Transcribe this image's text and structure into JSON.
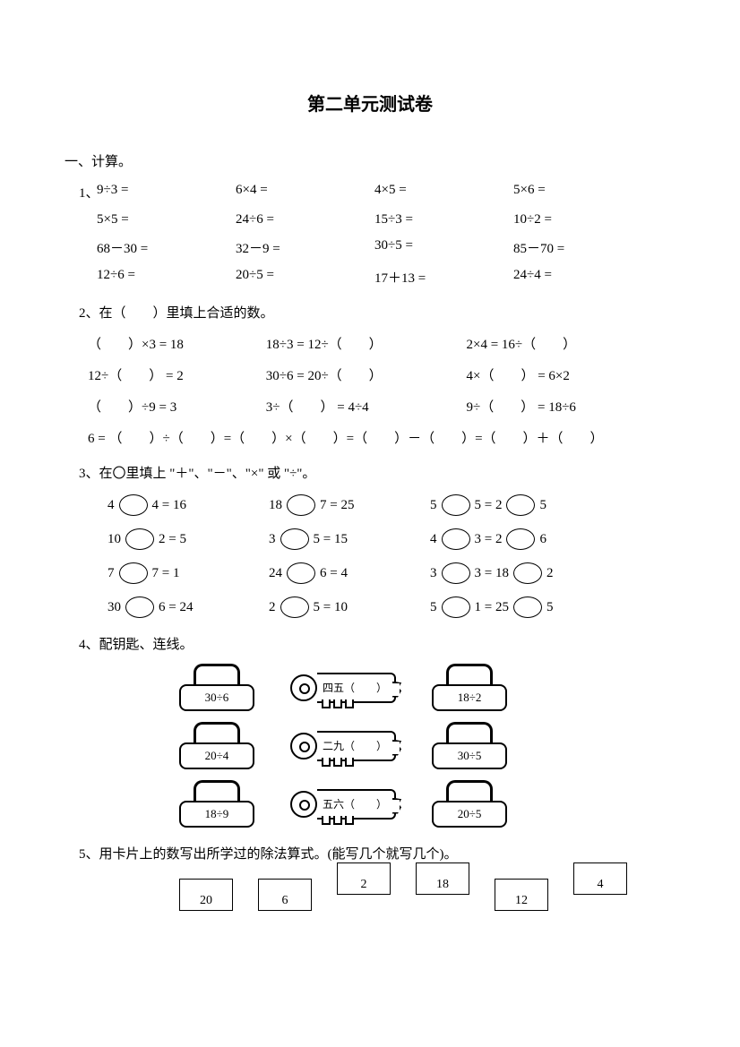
{
  "title": "第二单元测试卷",
  "section1_heading": "一、计算。",
  "q1_label": "1、",
  "q1_rows": [
    [
      "9÷3 =",
      "6×4 =",
      "4×5 =",
      "5×6 ="
    ],
    [
      "5×5 =",
      "24÷6 =",
      "15÷3 =",
      "10÷2 ="
    ],
    [
      "68－30 =",
      "32－9 =",
      "30÷5 =",
      "85－70 ="
    ],
    [
      "12÷6 =",
      "20÷5 =",
      "17＋13 =",
      "24÷4 ="
    ]
  ],
  "q2_heading": "2、在（　　）里填上合适的数。",
  "q2_lines": [
    [
      "（　　）×3 = 18",
      "18÷3 = 12÷（　　）",
      "2×4 = 16÷（　　）"
    ],
    [
      "12÷（　　） = 2",
      "30÷6 = 20÷（　　）",
      "4×（　　） = 6×2"
    ],
    [
      "（　　）÷9 = 3",
      "3÷（　　） = 4÷4",
      "9÷（　　） = 18÷6"
    ]
  ],
  "q2_last": "6 = （　　）÷（　　）=（　　）×（　　）=（　　）－（　　）=（　　）＋（　　）",
  "q3_heading": "3、在〇里填上 \"＋\"、\"－\"、\"×\" 或 \"÷\"。",
  "q3_rows": [
    [
      [
        "4",
        "4 = 16"
      ],
      [
        "18",
        "7 = 25"
      ],
      [
        "5",
        "5 = 2",
        "5"
      ]
    ],
    [
      [
        "10",
        "2 = 5"
      ],
      [
        "3",
        "5 = 15"
      ],
      [
        "4",
        "3 = 2",
        "6"
      ]
    ],
    [
      [
        "7",
        "7 = 1"
      ],
      [
        "24",
        "6 = 4"
      ],
      [
        "3",
        "3 = 18",
        "2"
      ]
    ],
    [
      [
        "30",
        "6 = 24"
      ],
      [
        "2",
        "5 = 10"
      ],
      [
        "5",
        "1 = 25",
        "5"
      ]
    ]
  ],
  "q4_heading": "4、配钥匙、连线。",
  "locks_left": [
    "30÷6",
    "20÷4",
    "18÷9"
  ],
  "keys": [
    "四五（　　）",
    "二九（　　）",
    "五六（　　）"
  ],
  "locks_right": [
    "18÷2",
    "30÷5",
    "20÷5"
  ],
  "q5_heading": "5、用卡片上的数写出所学过的除法算式。(能写几个就写几个)。",
  "cards": [
    "20",
    "6",
    "2",
    "18",
    "12",
    "4"
  ],
  "colors": {
    "text": "#000000",
    "bg": "#ffffff"
  }
}
